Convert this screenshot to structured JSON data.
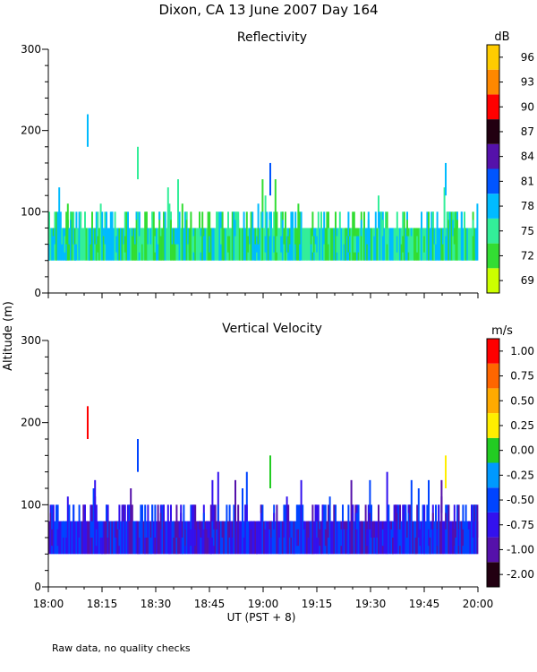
{
  "figure": {
    "title": "Dixon, CA 13 June 2007  Day 164",
    "shared_ylabel": "Altitude (m)",
    "footnote": "Raw data, no quality checks"
  },
  "chart_data": [
    {
      "type": "heatmap",
      "title": "Reflectivity",
      "ylabel": "Altitude (m)",
      "ylim": [
        0,
        300
      ],
      "yticks": [
        0,
        100,
        200,
        300
      ],
      "colorbar": {
        "unit": "dB",
        "levels": [
          69,
          72,
          75,
          78,
          81,
          84,
          87,
          90,
          93,
          96
        ],
        "colors": [
          "#ccff00",
          "#33dd33",
          "#33ee99",
          "#00bbff",
          "#0055ff",
          "#5511aa",
          "#220011",
          "#ff0000",
          "#ff8800",
          "#ffcc00"
        ]
      },
      "data_summary": {
        "echo_base_m": 40,
        "typical_top_m": [
          80,
          100
        ],
        "dominant_levels_db": [
          72,
          75,
          78
        ],
        "isolated_spikes": [
          {
            "time": "18:11",
            "top_m": 220,
            "level_db": 78
          },
          {
            "time": "18:25",
            "top_m": 180,
            "level_db": 75
          },
          {
            "time": "19:02",
            "top_m": 160,
            "level_db": 81
          },
          {
            "time": "19:51",
            "top_m": 160,
            "level_db": 78
          }
        ]
      }
    },
    {
      "type": "heatmap",
      "title": "Vertical Velocity",
      "ylabel": "Altitude (m)",
      "ylim": [
        0,
        300
      ],
      "yticks": [
        0,
        100,
        200,
        300
      ],
      "xlabel": "UT  (PST + 8)",
      "xlim": [
        "18:00",
        "20:00"
      ],
      "xticks": [
        "18:00",
        "18:15",
        "18:30",
        "18:45",
        "19:00",
        "19:15",
        "19:30",
        "19:45",
        "20:00"
      ],
      "colorbar": {
        "unit": "m/s",
        "labels": [
          "-2.00",
          "-1.00",
          "-0.75",
          "-0.50",
          "-0.25",
          "0.00",
          "0.25",
          "0.50",
          "0.75",
          "1.00"
        ],
        "colors": [
          "#220011",
          "#5511aa",
          "#3311ee",
          "#0044ff",
          "#0099ff",
          "#22cc22",
          "#ffee00",
          "#ffaa00",
          "#ff6600",
          "#ff0000"
        ]
      },
      "data_summary": {
        "echo_base_m": 40,
        "typical_top_m": [
          80,
          100
        ],
        "dominant_levels_ms": [
          "-1.00",
          "-0.75",
          "-0.50"
        ],
        "isolated_spikes": [
          {
            "time": "18:11",
            "top_m": 220,
            "level_ms": "1.00"
          },
          {
            "time": "18:25",
            "top_m": 180,
            "level_ms": "-0.50"
          },
          {
            "time": "19:02",
            "top_m": 160,
            "level_ms": "0.00"
          },
          {
            "time": "19:51",
            "top_m": 160,
            "level_ms": "0.25"
          }
        ]
      }
    }
  ]
}
